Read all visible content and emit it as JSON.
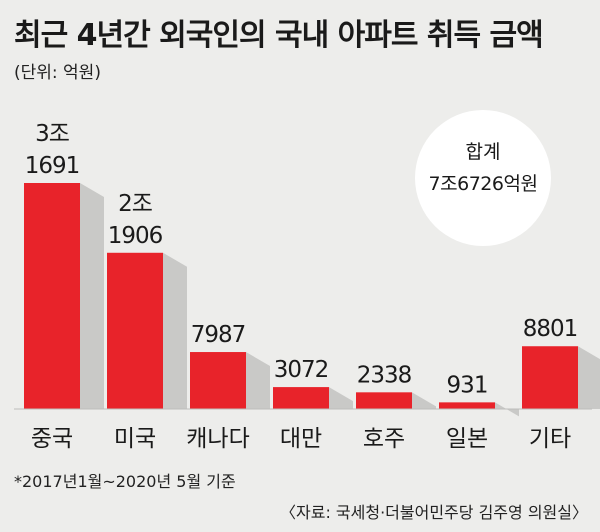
{
  "title": "최근 4년간 외국인의 국내 아파트 취득 금액",
  "unit": "(단위: 억원)",
  "total": {
    "label": "합계",
    "value": "7조6726억원"
  },
  "footnote": "*2017년1월~2020년 5월 기준",
  "source": "〈자료: 국세청·더불어민주당 김주영 의원실〉",
  "colors": {
    "bar": "#e8232a",
    "shadow": "#c9c9c7",
    "background": "#ededeb"
  },
  "chart_data": {
    "type": "bar",
    "categories": [
      "중국",
      "미국",
      "캐나다",
      "대만",
      "호주",
      "일본",
      "기타"
    ],
    "values": [
      31691,
      21906,
      7987,
      3072,
      2338,
      931,
      8801
    ],
    "value_labels": [
      [
        "3조",
        "1691"
      ],
      [
        "2조",
        "1906"
      ],
      [
        "7987"
      ],
      [
        "3072"
      ],
      [
        "2338"
      ],
      [
        "931"
      ],
      [
        "8801"
      ]
    ],
    "ylabel": "억원"
  }
}
